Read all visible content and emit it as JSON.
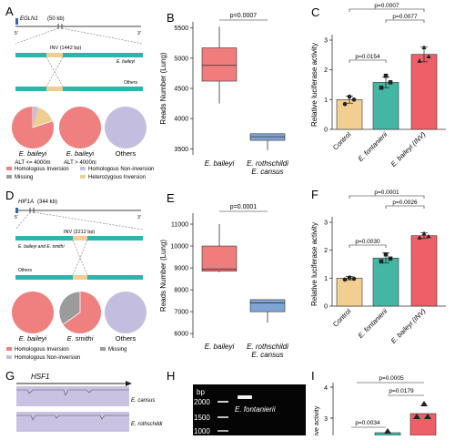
{
  "panels": {
    "A": "A",
    "B": "B",
    "C": "C",
    "D": "D",
    "E": "E",
    "F": "F",
    "G": "G",
    "H": "H",
    "I": "I"
  },
  "colors": {
    "inv_red": "#f08080",
    "box_red": "#f07c7c",
    "box_blue": "#7fa4d6",
    "teal": "#2bb5ad",
    "tan": "#efce92",
    "lav": "#c3bedf",
    "gray": "#9b9b9b",
    "bar_tan": "#f2cf91",
    "bar_teal": "#43b7a4",
    "bar_red": "#ef5f67",
    "gene_blue": "#3465b0"
  },
  "A": {
    "gene": "EGLN1",
    "gene_size": "(50 kb)",
    "end5": "5'",
    "end3": "3'",
    "inv_label": "INV (1442 bp)",
    "track1": "E. baileyi",
    "track2": "Others",
    "pies": [
      {
        "title": "E. baileyi",
        "sub": "ALT <= 4000m"
      },
      {
        "title": "E. baileyi",
        "sub": "ALT > 4000m"
      },
      {
        "title": "Others",
        "sub": ""
      }
    ],
    "legend": [
      "Homologous Inversion",
      "Homologous Non-inversion",
      "Missing",
      "Heterozygous Inversion"
    ]
  },
  "D": {
    "gene": "HIF1A",
    "gene_size": "(344 kb)",
    "end5": "5'",
    "end3": "3'",
    "inv_label": "INV (2212 bp)",
    "track1": "E. baileyi and E. smithi",
    "track2": "Others",
    "pies": [
      {
        "title": "E. baileyi"
      },
      {
        "title": "E. smithi"
      },
      {
        "title": "Others"
      }
    ],
    "legend": [
      "Homologous Inversion",
      "Missing",
      "Homologous Non-inversion"
    ]
  },
  "G": {
    "gene": "HSF1",
    "track1": "E. cansus",
    "track2": "E. rothschildi"
  },
  "H": {
    "unit": "bp",
    "ladder": [
      "2000",
      "1500",
      "1000"
    ],
    "lane_label": "E. fontanierii"
  },
  "I": {
    "ylabel": "ive activity",
    "yticks": [
      "4",
      "3"
    ],
    "p_values": [
      "p=0.0005",
      "p=0.0179",
      "p=0.0034"
    ]
  },
  "chart_data": [
    {
      "panel": "A-pies",
      "type": "pie",
      "series": [
        {
          "name": "E. baileyi",
          "slices": {
            "Homologous Inversion": 0.8,
            "Homologous Non-inversion": 0.04,
            "Missing": 0.0,
            "Heterozygous Inversion": 0.16
          }
        },
        {
          "name": "E. baileyi",
          "slices": {
            "Homologous Inversion": 1.0
          }
        },
        {
          "name": "Others",
          "slices": {
            "Homologous Non-inversion": 1.0
          }
        }
      ]
    },
    {
      "panel": "B",
      "type": "box",
      "ylabel": "Reads Number (Lung)",
      "ylim": [
        3400,
        5600
      ],
      "yticks": [
        3500,
        4000,
        4500,
        5000,
        5500
      ],
      "categories": [
        [
          "E. baileyi"
        ],
        [
          "E. rothschildi",
          "E. cansus"
        ]
      ],
      "boxes": [
        {
          "min": 4250,
          "q1": 4620,
          "median": 4880,
          "q3": 5170,
          "max": 5520
        },
        {
          "min": 3480,
          "q1": 3640,
          "median": 3700,
          "q3": 3750,
          "max": 3750
        }
      ],
      "annotation": "p=0.0007"
    },
    {
      "panel": "C",
      "type": "bar",
      "ylabel": "Relative luciferase activity",
      "ylim": [
        0,
        3
      ],
      "yticks": [
        0,
        1,
        2,
        3
      ],
      "categories": [
        "Control",
        "E. fontanierii",
        "E. baileyi (INV)"
      ],
      "values": [
        1.0,
        1.58,
        2.52
      ],
      "errors": [
        0.12,
        0.18,
        0.25
      ],
      "points": [
        [
          0.85,
          1.1,
          1.0
        ],
        [
          1.4,
          1.8,
          1.58
        ],
        [
          2.3,
          2.75,
          2.45
        ]
      ],
      "p_values": [
        {
          "pair": [
            0,
            2
          ],
          "text": "p=0.0007"
        },
        {
          "pair": [
            1,
            2
          ],
          "text": "p=0.0077"
        },
        {
          "pair": [
            0,
            1
          ],
          "text": "p=0.0154"
        }
      ]
    },
    {
      "panel": "D-pies",
      "type": "pie",
      "series": [
        {
          "name": "E. baileyi",
          "slices": {
            "Homologous Inversion": 1.0
          }
        },
        {
          "name": "E. smithi",
          "slices": {
            "Homologous Inversion": 0.66,
            "Missing": 0.34
          }
        },
        {
          "name": "Others",
          "slices": {
            "Homologous Non-inversion": 1.0
          }
        }
      ]
    },
    {
      "panel": "E",
      "type": "box",
      "ylabel": "Reads Number (Lung)",
      "ylim": [
        5800,
        11500
      ],
      "yticks": [
        6000,
        7000,
        8000,
        9000,
        10000,
        11000
      ],
      "categories": [
        [
          "E. baileyi"
        ],
        [
          "E. rothschildi",
          "E. cansus"
        ]
      ],
      "boxes": [
        {
          "min": 8800,
          "q1": 8850,
          "median": 8950,
          "q3": 10000,
          "max": 11000
        },
        {
          "min": 6500,
          "q1": 7000,
          "median": 7400,
          "q3": 7550,
          "max": 7550
        }
      ],
      "annotation": "p=0.0001"
    },
    {
      "panel": "F",
      "type": "bar",
      "ylabel": "Relative luciferase activity",
      "ylim": [
        0,
        3
      ],
      "yticks": [
        0,
        1,
        2,
        3
      ],
      "categories": [
        "Control",
        "E. fontanierii",
        "E. baileyi (INV)"
      ],
      "values": [
        1.0,
        1.72,
        2.52
      ],
      "errors": [
        0.06,
        0.18,
        0.1
      ],
      "points": [
        [
          0.95,
          1.02,
          0.98
        ],
        [
          1.6,
          1.85,
          1.7
        ],
        [
          2.45,
          2.6,
          2.5
        ]
      ],
      "p_values": [
        {
          "pair": [
            0,
            2
          ],
          "text": "p=0.0001"
        },
        {
          "pair": [
            1,
            2
          ],
          "text": "p=0.0026"
        },
        {
          "pair": [
            0,
            1
          ],
          "text": "p=0.0030"
        }
      ]
    }
  ]
}
